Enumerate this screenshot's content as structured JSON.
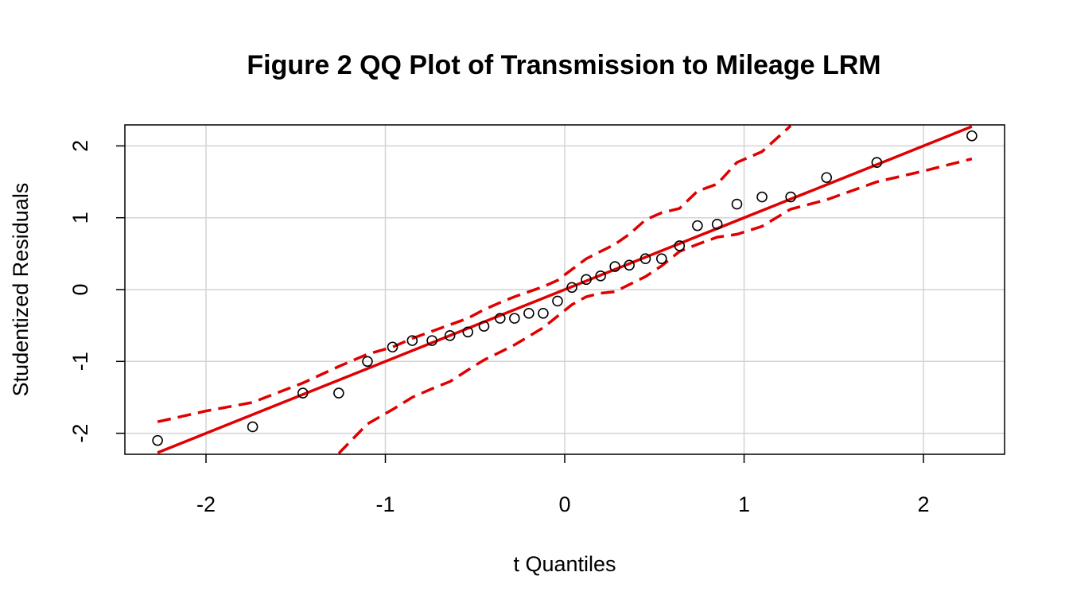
{
  "chart_data": {
    "type": "scatter",
    "title": "Figure 2 QQ Plot of Transmission to Mileage LRM",
    "xlabel": "t Quantiles",
    "ylabel": "Studentized Residuals",
    "xlim": [
      -2.27,
      2.27
    ],
    "ylim": [
      -2.3,
      2.3
    ],
    "xticks": [
      -2,
      -1,
      0,
      1,
      2
    ],
    "yticks": [
      -2,
      -1,
      0,
      1,
      2
    ],
    "xtick_labels": [
      "-2",
      "-1",
      "0",
      "1",
      "2"
    ],
    "ytick_labels": [
      "-2",
      "-1",
      "0",
      "1",
      "2"
    ],
    "grid": true,
    "colors": {
      "reference_line": "#e00000",
      "points": "#000000",
      "grid": "#d3d3d3"
    },
    "points": {
      "x": [
        -2.27,
        -1.74,
        -1.46,
        -1.26,
        -1.1,
        -0.96,
        -0.85,
        -0.74,
        -0.64,
        -0.54,
        -0.45,
        -0.36,
        -0.28,
        -0.2,
        -0.12,
        -0.04,
        0.04,
        0.12,
        0.2,
        0.28,
        0.36,
        0.45,
        0.54,
        0.64,
        0.74,
        0.85,
        0.96,
        1.1,
        1.26,
        1.46,
        1.74,
        2.27
      ],
      "y": [
        -2.1,
        -1.91,
        -1.44,
        -1.44,
        -1.0,
        -0.8,
        -0.71,
        -0.71,
        -0.64,
        -0.59,
        -0.51,
        -0.4,
        -0.4,
        -0.33,
        -0.33,
        -0.16,
        0.03,
        0.14,
        0.19,
        0.32,
        0.34,
        0.43,
        0.43,
        0.61,
        0.89,
        0.91,
        1.19,
        1.29,
        1.29,
        1.56,
        1.77,
        2.14
      ]
    },
    "reference_line": {
      "intercept": 0.0,
      "slope": 1.0
    },
    "envelope_upper": {
      "x": [
        -2.27,
        -2.0,
        -1.74,
        -1.46,
        -1.26,
        -1.1,
        -0.96,
        -0.85,
        -0.74,
        -0.64,
        -0.54,
        -0.45,
        -0.36,
        -0.28,
        -0.2,
        -0.12,
        -0.04,
        0.04,
        0.12,
        0.2,
        0.28,
        0.36,
        0.45,
        0.54,
        0.64,
        0.74,
        0.85,
        0.96,
        1.1,
        1.26
      ],
      "y": [
        -1.84,
        -1.69,
        -1.57,
        -1.3,
        -1.07,
        -0.9,
        -0.8,
        -0.68,
        -0.58,
        -0.49,
        -0.4,
        -0.28,
        -0.18,
        -0.1,
        -0.03,
        0.04,
        0.13,
        0.28,
        0.43,
        0.53,
        0.63,
        0.77,
        0.97,
        1.07,
        1.13,
        1.37,
        1.47,
        1.77,
        1.92,
        2.28
      ]
    },
    "envelope_lower": {
      "x": [
        -1.26,
        -1.1,
        -0.96,
        -0.85,
        -0.74,
        -0.64,
        -0.54,
        -0.45,
        -0.36,
        -0.28,
        -0.2,
        -0.12,
        -0.04,
        0.04,
        0.12,
        0.2,
        0.28,
        0.36,
        0.45,
        0.54,
        0.64,
        0.74,
        0.85,
        0.96,
        1.1,
        1.26,
        1.46,
        1.74,
        2.0,
        2.27
      ],
      "y": [
        -2.28,
        -1.87,
        -1.67,
        -1.5,
        -1.38,
        -1.28,
        -1.12,
        -0.98,
        -0.87,
        -0.77,
        -0.65,
        -0.53,
        -0.37,
        -0.21,
        -0.1,
        -0.05,
        -0.03,
        0.07,
        0.18,
        0.33,
        0.53,
        0.63,
        0.73,
        0.77,
        0.88,
        1.12,
        1.25,
        1.5,
        1.65,
        1.82
      ]
    }
  }
}
